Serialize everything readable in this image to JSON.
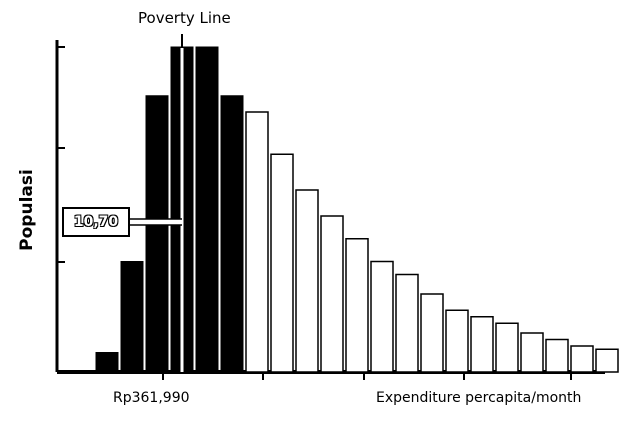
{
  "chart_data": {
    "type": "bar",
    "title": "Poverty Line",
    "xlabel": "Expenditure percapita/month",
    "ylabel": "Populasi",
    "xtick_label": "Rp361,990",
    "annotation": "10,70",
    "ylim": [
      0,
      100
    ],
    "bars": [
      {
        "value": 6,
        "style": "filled"
      },
      {
        "value": 34,
        "style": "filled"
      },
      {
        "value": 85,
        "style": "filled"
      },
      {
        "value": 100,
        "style": "filled"
      },
      {
        "value": 100,
        "style": "filled"
      },
      {
        "value": 85,
        "style": "filled"
      },
      {
        "value": 80,
        "style": "outline"
      },
      {
        "value": 67,
        "style": "outline"
      },
      {
        "value": 56,
        "style": "outline"
      },
      {
        "value": 48,
        "style": "outline"
      },
      {
        "value": 41,
        "style": "outline"
      },
      {
        "value": 34,
        "style": "outline"
      },
      {
        "value": 30,
        "style": "outline"
      },
      {
        "value": 24,
        "style": "outline"
      },
      {
        "value": 19,
        "style": "outline"
      },
      {
        "value": 17,
        "style": "outline"
      },
      {
        "value": 15,
        "style": "outline"
      },
      {
        "value": 12,
        "style": "outline"
      },
      {
        "value": 10,
        "style": "outline"
      },
      {
        "value": 8,
        "style": "outline"
      },
      {
        "value": 7,
        "style": "outline"
      }
    ],
    "grid": false,
    "colors": {
      "filled": "#000000",
      "outline": "#ffffff",
      "stroke": "#000000"
    }
  }
}
